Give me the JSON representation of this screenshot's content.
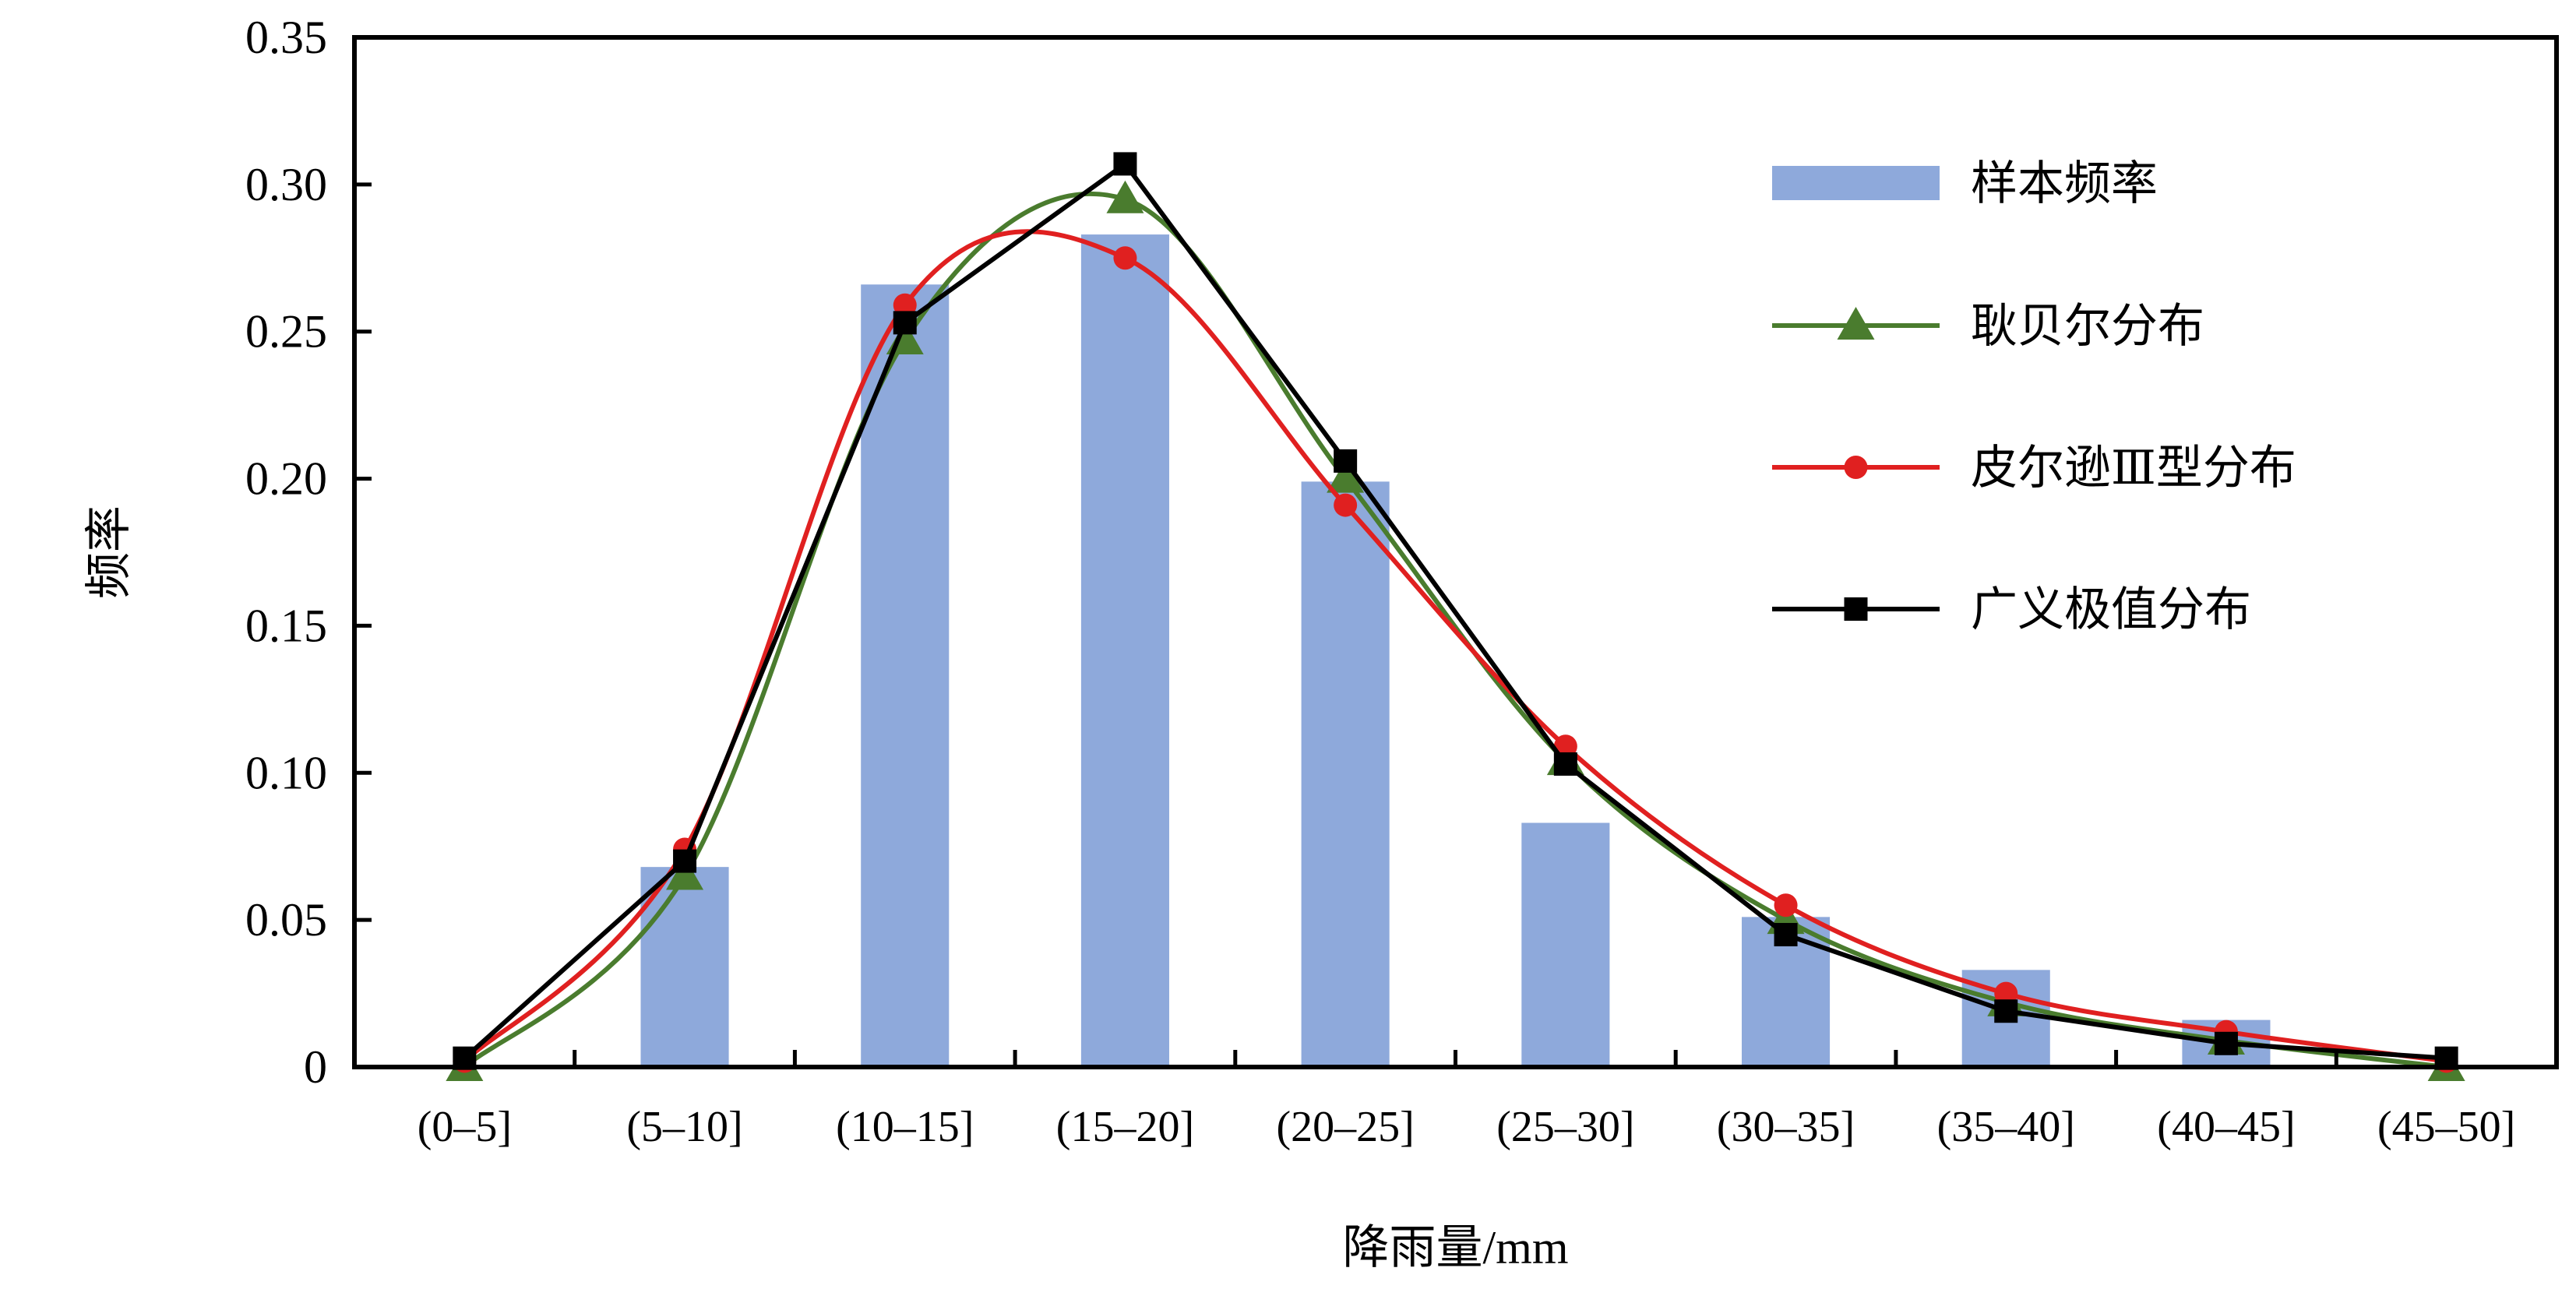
{
  "chart_data": {
    "type": "bar",
    "xlabel": "降雨量/mm",
    "ylabel": "频率",
    "categories": [
      "(0–5]",
      "(5–10]",
      "(10–15]",
      "(15–20]",
      "(20–25]",
      "(25–30]",
      "(30–35]",
      "(35–40]",
      "(40–45]",
      "(45–50]"
    ],
    "ylim": [
      0,
      0.35
    ],
    "yticks": [
      "0",
      "0.05",
      "0.10",
      "0.15",
      "0.20",
      "0.25",
      "0.30",
      "0.35"
    ],
    "grid": false,
    "legend_position": "top-right",
    "series": [
      {
        "name": "样本频率",
        "type": "bar",
        "color": "#8EA9DB",
        "values": [
          0,
          0.068,
          0.266,
          0.283,
          0.199,
          0.083,
          0.051,
          0.033,
          0.016,
          0
        ]
      },
      {
        "name": "耿贝尔分布",
        "type": "line",
        "marker": "triangle",
        "color": "#4A7C2E",
        "smooth": true,
        "values": [
          0.0,
          0.065,
          0.247,
          0.295,
          0.2,
          0.104,
          0.05,
          0.022,
          0.009,
          0.0
        ]
      },
      {
        "name": "皮尔逊Ⅲ型分布",
        "type": "line",
        "marker": "circle",
        "color": "#E02020",
        "smooth": true,
        "values": [
          0.002,
          0.074,
          0.259,
          0.275,
          0.191,
          0.109,
          0.055,
          0.025,
          0.012,
          0.002
        ]
      },
      {
        "name": "广义极值分布",
        "type": "line",
        "marker": "square",
        "color": "#000000",
        "smooth": false,
        "values": [
          0.003,
          0.07,
          0.253,
          0.307,
          0.206,
          0.103,
          0.045,
          0.019,
          0.008,
          0.003
        ]
      }
    ]
  }
}
